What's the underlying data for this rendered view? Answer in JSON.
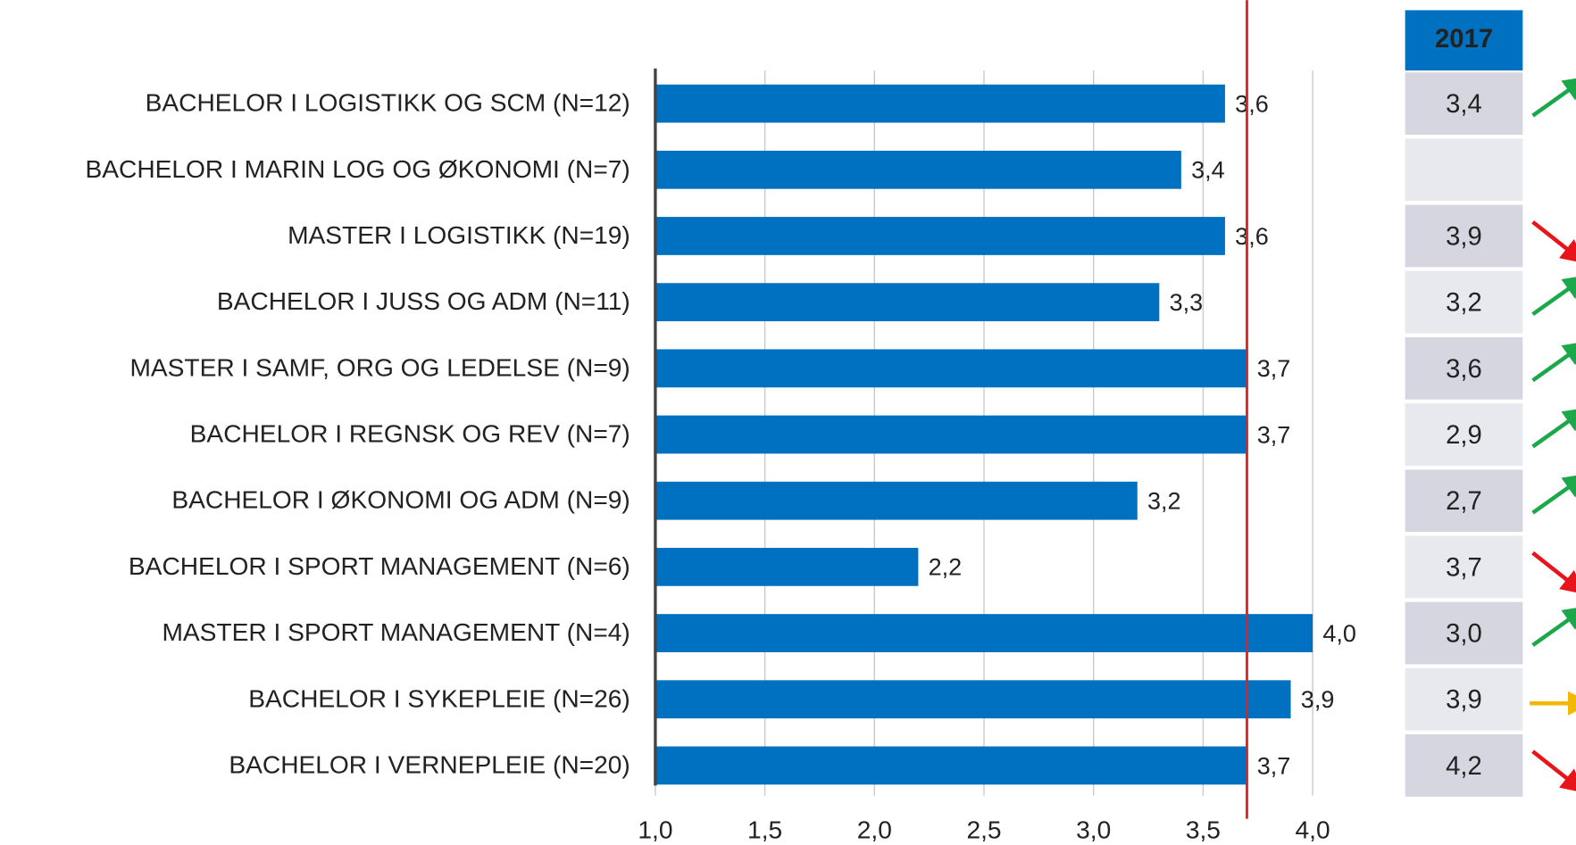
{
  "chart_data": {
    "type": "bar",
    "orientation": "horizontal",
    "categories": [
      "BACHELOR I LOGISTIKK OG SCM (N=12)",
      "BACHELOR I MARIN LOG OG ØKONOMI (N=7)",
      "MASTER I LOGISTIKK (N=19)",
      "BACHELOR I JUSS OG ADM (N=11)",
      "MASTER I SAMF, ORG OG LEDELSE (N=9)",
      "BACHELOR I REGNSK OG REV (N=7)",
      "BACHELOR I ØKONOMI OG ADM (N=9)",
      "BACHELOR I SPORT MANAGEMENT (N=6)",
      "MASTER I SPORT MANAGEMENT (N=4)",
      "BACHELOR I SYKEPLEIE (N=26)",
      "BACHELOR I VERNEPLEIE (N=20)"
    ],
    "values": [
      3.6,
      3.4,
      3.6,
      3.3,
      3.7,
      3.7,
      3.2,
      2.2,
      4.0,
      3.9,
      3.7
    ],
    "value_labels": [
      "3,6",
      "3,4",
      "3,6",
      "3,3",
      "3,7",
      "3,7",
      "3,2",
      "2,2",
      "4,0",
      "3,9",
      "3,7"
    ],
    "color": "#0070c0",
    "xlim": [
      1.0,
      4.0
    ],
    "xticks": [
      {
        "value": 1.0,
        "label": "1,0"
      },
      {
        "value": 1.5,
        "label": "1,5"
      },
      {
        "value": 2.0,
        "label": "2,0"
      },
      {
        "value": 2.5,
        "label": "2,5"
      },
      {
        "value": 3.0,
        "label": "3,0"
      },
      {
        "value": 3.5,
        "label": "3,5"
      },
      {
        "value": 4.0,
        "label": "4,0"
      }
    ],
    "grid": true,
    "reference_line": {
      "value": 3.7,
      "color": "#e02020"
    },
    "table": {
      "header": "2017",
      "header_color": "#0070c0",
      "values": [
        3.4,
        null,
        3.9,
        3.2,
        3.6,
        2.9,
        2.7,
        3.7,
        3.0,
        3.9,
        4.2
      ],
      "value_labels": [
        "3,4",
        null,
        "3,9",
        "3,2",
        "3,6",
        "2,9",
        "2,7",
        "3,7",
        "3,0",
        "3,9",
        "4,2"
      ],
      "trend": [
        "up",
        null,
        "down",
        "up",
        "up",
        "up",
        "up",
        "down",
        "up",
        "flat",
        "down"
      ],
      "trend_colors": {
        "up": "#1aa84a",
        "down": "#e8141a",
        "flat": "#f5b800"
      }
    }
  }
}
